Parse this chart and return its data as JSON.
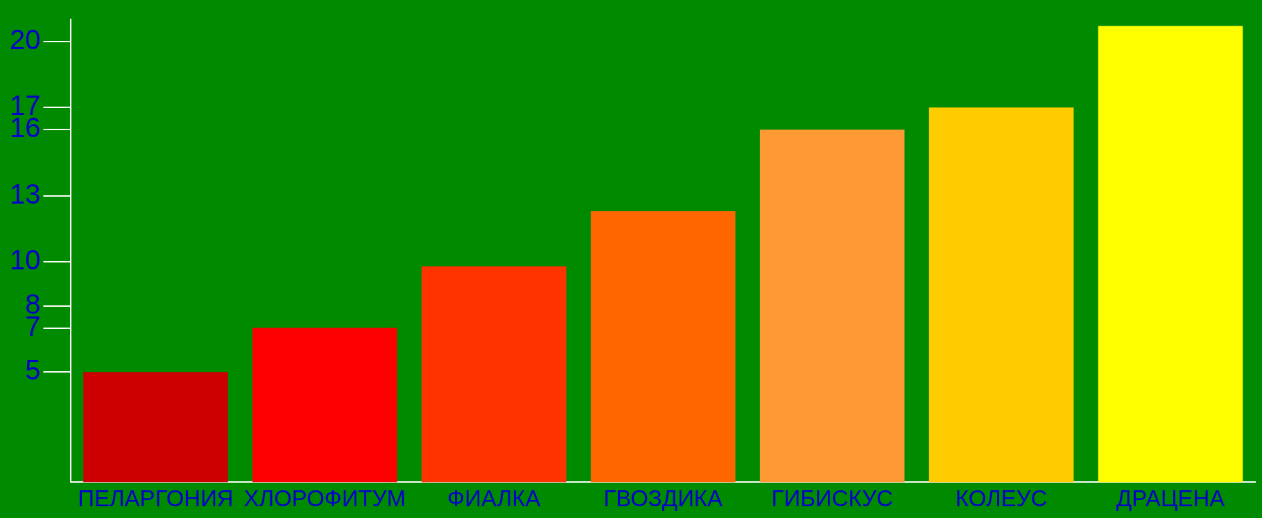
{
  "chart_data": {
    "type": "bar",
    "categories": [
      "ПЕЛАРГОНИЯ",
      "ХЛОРОФИТУМ",
      "ФИАЛКА",
      "ГВОЗДИКА",
      "ГИБИСКУС",
      "КОЛЕУС",
      "ДРАЦЕНА"
    ],
    "values": [
      5,
      7,
      9.8,
      12.3,
      16,
      17,
      20.7
    ],
    "colors": [
      "#cc0000",
      "#ff0000",
      "#ff3300",
      "#ff6600",
      "#ff9933",
      "#ffcc00",
      "#ffff00"
    ],
    "ylim": [
      0,
      21
    ],
    "yticks": [
      5,
      7,
      8,
      10,
      13,
      16,
      17,
      20
    ],
    "grid": false,
    "legend": false
  }
}
